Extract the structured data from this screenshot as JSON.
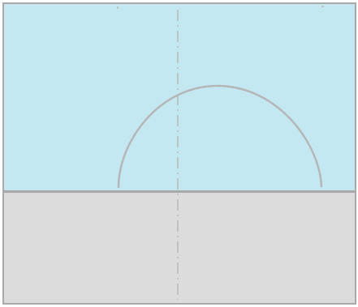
{
  "colors": {
    "top_region": "#c4e8f2",
    "bottom_region": "#dcdcdc",
    "border": "#a9a9a9",
    "divider": "#a9a9a9",
    "center_line": "#b8b8b8",
    "arc": "#b5b5b5"
  },
  "center_line_style": "dash-dot",
  "arc_shape": "semicircle"
}
